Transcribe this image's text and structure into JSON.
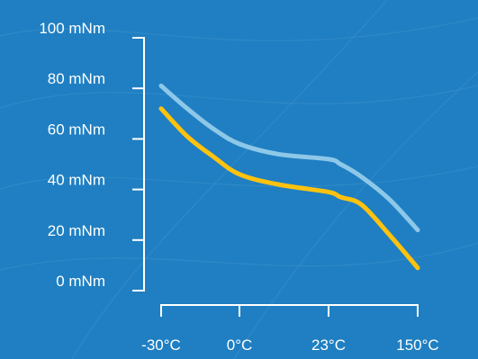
{
  "colors": {
    "background": "#1f7fc2",
    "axis": "#ffffff",
    "text": "#ffffff"
  },
  "chart_data": {
    "type": "line",
    "title": "",
    "xlabel": "",
    "ylabel": "",
    "categories": [
      "-30°C",
      "0°C",
      "23°C",
      "150°C"
    ],
    "y_ticks": [
      "0 mNm",
      "20 mNm",
      "40 mNm",
      "60 mNm",
      "80 mNm",
      "100 mNm"
    ],
    "ylim": [
      0,
      100
    ],
    "grid": false,
    "series": [
      {
        "color": "#8ec8e8",
        "x": [
          "-30°C",
          "-20°C",
          "-10°C",
          "0°C",
          "10°C",
          "23°C",
          "40°C",
          "70°C",
          "110°C",
          "150°C"
        ],
        "values": [
          81,
          72,
          64,
          58,
          54,
          52,
          50,
          45,
          36,
          24
        ]
      },
      {
        "color": "#ffc20e",
        "x": [
          "-30°C",
          "-20°C",
          "-10°C",
          "0°C",
          "10°C",
          "23°C",
          "40°C",
          "70°C",
          "110°C",
          "150°C"
        ],
        "values": [
          72,
          61,
          53,
          46,
          42,
          39,
          37,
          34,
          22,
          9
        ]
      }
    ]
  }
}
